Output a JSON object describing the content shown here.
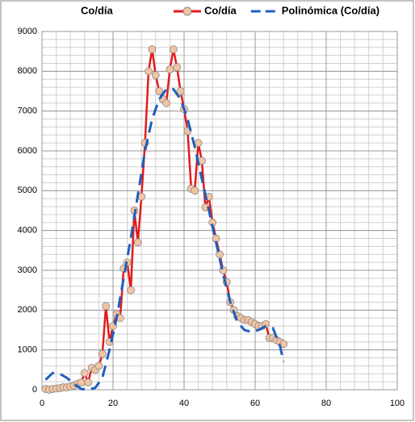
{
  "chart_data": {
    "type": "scatter",
    "title": "Co/día",
    "xlim": [
      0,
      100
    ],
    "xticks": [
      0,
      20,
      40,
      60,
      80,
      100
    ],
    "ylim": [
      0,
      9000
    ],
    "yticks": [
      0,
      1000,
      2000,
      3000,
      4000,
      5000,
      6000,
      7000,
      8000,
      9000
    ],
    "grid": true,
    "legend": "top",
    "series": [
      {
        "name": "Co/día",
        "color": "#e31a1c",
        "marker_color": "#f2c4a3",
        "style": "solid-markers",
        "x": [
          1,
          2,
          3,
          4,
          5,
          6,
          7,
          8,
          9,
          10,
          11,
          12,
          13,
          14,
          15,
          16,
          17,
          18,
          19,
          20,
          21,
          22,
          23,
          24,
          25,
          26,
          27,
          28,
          29,
          30,
          31,
          32,
          33,
          34,
          35,
          36,
          37,
          38,
          39,
          40,
          41,
          42,
          43,
          44,
          45,
          46,
          47,
          48,
          49,
          50,
          51,
          52,
          53,
          54,
          55,
          56,
          57,
          58,
          59,
          60,
          61,
          62,
          63,
          64,
          65,
          66,
          67,
          68
        ],
        "values": [
          20,
          0,
          20,
          30,
          40,
          60,
          60,
          80,
          100,
          150,
          180,
          420,
          180,
          550,
          500,
          600,
          900,
          2100,
          1200,
          1600,
          1900,
          1800,
          3050,
          3200,
          2500,
          4500,
          3700,
          4850,
          6200,
          8000,
          8550,
          7900,
          7500,
          7300,
          7200,
          8050,
          8550,
          8100,
          7500,
          7050,
          6500,
          5050,
          5000,
          6200,
          5750,
          4580,
          4850,
          4200,
          3800,
          3400,
          3000,
          2700,
          2200,
          2000,
          1850,
          1800,
          1750,
          1750,
          1700,
          1650,
          1600,
          1600,
          1650,
          1300,
          1300,
          1250,
          1200,
          1150
        ]
      },
      {
        "name": "Polinómica (Co/día)",
        "color": "#1f5fbf",
        "style": "dashed",
        "x": [
          1,
          3,
          5,
          7,
          9,
          11,
          13,
          15,
          17,
          19,
          21,
          23,
          25,
          27,
          29,
          31,
          33,
          35,
          37,
          39,
          41,
          43,
          45,
          47,
          49,
          51,
          53,
          55,
          57,
          59,
          61,
          63,
          65,
          67,
          68
        ],
        "values": [
          250,
          420,
          400,
          300,
          150,
          20,
          0,
          50,
          300,
          1000,
          1800,
          2800,
          3800,
          4900,
          6000,
          6800,
          7300,
          7550,
          7550,
          7300,
          6800,
          6100,
          5300,
          4500,
          3700,
          2900,
          2200,
          1700,
          1500,
          1450,
          1500,
          1600,
          1550,
          1100,
          700
        ]
      }
    ]
  }
}
